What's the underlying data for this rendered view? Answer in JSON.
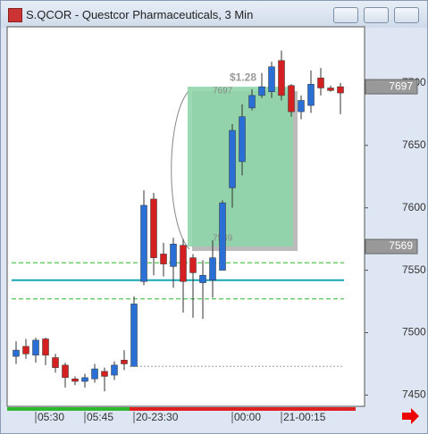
{
  "chart_data": {
    "type": "candlestick",
    "title": "S.QCOR - Questcor Pharmaceuticals, 3 Min",
    "categories": [
      null,
      null,
      "05:30",
      null,
      null,
      null,
      null,
      "05:45",
      null,
      null,
      null,
      null,
      "20-23:30",
      null,
      null,
      null,
      null,
      null,
      null,
      null,
      null,
      null,
      "00:00",
      null,
      null,
      null,
      null,
      "21-00:15",
      null,
      null,
      null,
      null,
      null,
      null
    ],
    "open": [
      7481,
      7489,
      7482,
      7495,
      7480,
      7474,
      7463,
      7461,
      7463,
      7469,
      7466,
      7478,
      7473,
      7541,
      7607,
      7563,
      7553,
      7570,
      7560,
      7540,
      7542,
      7550,
      7616,
      7637,
      7680,
      7690,
      7693,
      7718,
      7698,
      7677,
      7682,
      7704,
      7696,
      7697
    ],
    "high": [
      7493,
      7495,
      7496,
      7496,
      7483,
      7476,
      7465,
      7467,
      7475,
      7472,
      7477,
      7486,
      7529,
      7614,
      7612,
      7572,
      7576,
      7575,
      7563,
      7558,
      7574,
      7606,
      7667,
      7683,
      7695,
      7708,
      7717,
      7726,
      7699,
      7690,
      7710,
      7712,
      7698,
      7700
    ],
    "low": [
      7475,
      7479,
      7476,
      7474,
      7468,
      7456,
      7458,
      7456,
      7460,
      7453,
      7462,
      7470,
      7473,
      7538,
      7546,
      7545,
      7536,
      7516,
      7512,
      7511,
      7528,
      7550,
      7600,
      7626,
      7678,
      7688,
      7688,
      7686,
      7673,
      7671,
      7676,
      7690,
      7693,
      7675
    ],
    "close": [
      7486,
      7483,
      7494,
      7482,
      7472,
      7464,
      7461,
      7464,
      7471,
      7465,
      7474,
      7475,
      7523,
      7602,
      7560,
      7555,
      7571,
      7541,
      7548,
      7546,
      7560,
      7604,
      7662,
      7673,
      7690,
      7697,
      7713,
      7690,
      7677,
      7686,
      7699,
      7696,
      7694,
      7692
    ],
    "up_color": "#2a6fd6",
    "down_color": "#d42020",
    "ylim": [
      7441,
      7745
    ],
    "yticks": [
      7450,
      7500,
      7550,
      7600,
      7650,
      7700
    ],
    "lines": [
      {
        "value": 7556,
        "color": "#2eb82e",
        "style": "dashed"
      },
      {
        "value": 7527,
        "color": "#2eb82e",
        "style": "dashed"
      },
      {
        "value": 7542,
        "color": "#17a8b8",
        "style": "solid"
      },
      {
        "value": 7473,
        "color": "#999999",
        "style": "dotted"
      }
    ],
    "box": {
      "top": 7697,
      "bottom": 7569,
      "label": "$1.28",
      "color": "#8fd6aa"
    },
    "price_tags": [
      7697,
      7569
    ]
  }
}
